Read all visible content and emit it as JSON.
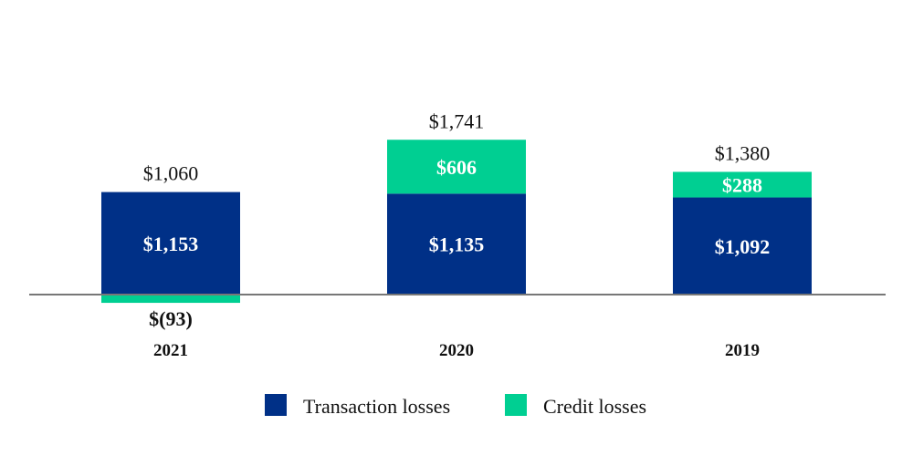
{
  "chart_data": {
    "type": "bar",
    "stacked": true,
    "categories": [
      "2021",
      "2020",
      "2019"
    ],
    "series": [
      {
        "name": "Transaction losses",
        "color": "#003087",
        "values": [
          1153,
          1135,
          1092
        ],
        "labels": [
          "$1,153",
          "$1,135",
          "$1,092"
        ]
      },
      {
        "name": "Credit losses",
        "color": "#00CF92",
        "values": [
          -93,
          606,
          288
        ],
        "labels": [
          "$(93)",
          "$606",
          "$288"
        ]
      }
    ],
    "totals": [
      1060,
      1741,
      1380
    ],
    "total_labels": [
      "$1,060",
      "$1,741",
      "$1,380"
    ],
    "ylim": [
      -93,
      1741
    ],
    "grid": false,
    "legend_position": "bottom",
    "baseline_color": "#777777"
  }
}
